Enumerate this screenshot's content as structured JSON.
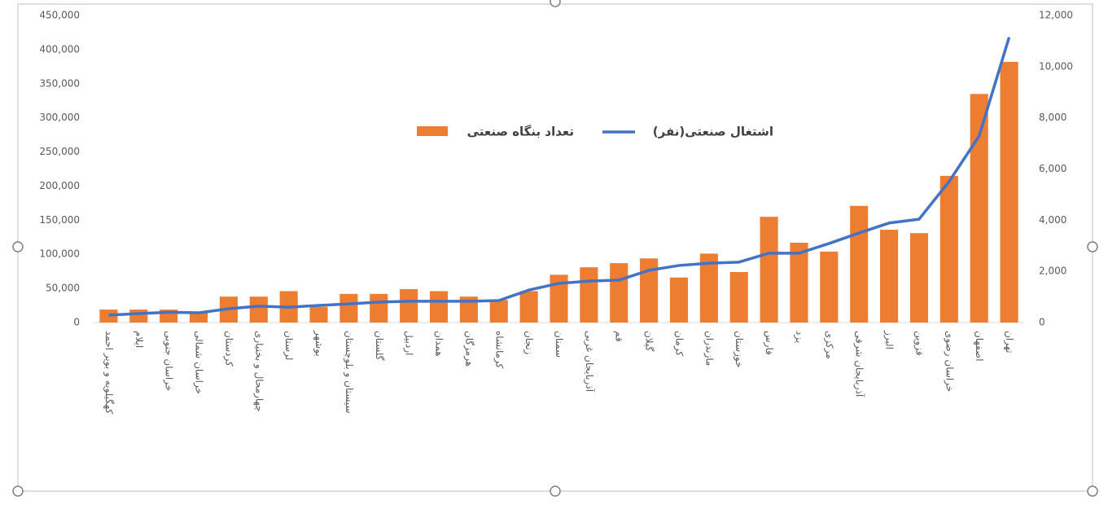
{
  "chart_data": {
    "type": "bar-line",
    "categories": [
      "کهگیلویه و بویر احمد",
      "ایلام",
      "خراسان جنوبی",
      "خراسان شمالی",
      "کردستان",
      "چهارمحال و بختیاری",
      "لرستان",
      "بوشهر",
      "سیستان و بلوچستان",
      "گلستان",
      "اردبیل",
      "همدان",
      "هرمزگان",
      "کرمانشاه",
      "زنجان",
      "سمنان",
      "آذربایجان غربی",
      "قم",
      "گیلان",
      "کرمان",
      "مازندران",
      "خوزستان",
      "فارس",
      "یزد",
      "مرکزی",
      "آذربایجان شرقی",
      "البرز",
      "قزوین",
      "خراسان رضوی",
      "اصفهان",
      "تهران"
    ],
    "series": [
      {
        "name": "تعداد بنگاه صنعتی",
        "color": "#ed7d31",
        "kind": "bar",
        "axis": "y",
        "values": [
          19000,
          19000,
          19000,
          16000,
          38000,
          38000,
          46000,
          23000,
          42000,
          42000,
          49000,
          46000,
          38000,
          33000,
          46000,
          70000,
          81000,
          87000,
          94000,
          66000,
          101000,
          74000,
          155000,
          117000,
          104000,
          171000,
          136000,
          131000,
          215000,
          335000,
          382000
        ]
      },
      {
        "name": "اشتغال صنعتی(نفر)",
        "color": "#4472c4",
        "kind": "line",
        "axis": "y2",
        "values": [
          290,
          350,
          400,
          380,
          540,
          640,
          600,
          670,
          730,
          800,
          830,
          830,
          830,
          860,
          1270,
          1530,
          1620,
          1660,
          2040,
          2230,
          2320,
          2360,
          2710,
          2710,
          3090,
          3500,
          3890,
          4040,
          5510,
          7290,
          11150
        ]
      }
    ],
    "ylim": [
      0,
      450000
    ],
    "yticks": [
      0,
      {
        "value": 50000,
        "label": "50,000"
      },
      {
        "value": 100000,
        "label": "100,000"
      },
      {
        "value": 150000,
        "label": "150,000"
      },
      {
        "value": 200000,
        "label": "200,000"
      },
      {
        "value": 250000,
        "label": "250,000"
      },
      {
        "value": 300000,
        "label": "300,000"
      },
      {
        "value": 350000,
        "label": "350,000"
      },
      {
        "value": 400000,
        "label": "400,000"
      },
      {
        "value": 450000,
        "label": "450,000"
      }
    ],
    "y2lim": [
      0,
      12000
    ],
    "y2ticks": [
      0,
      {
        "value": 2000,
        "label": "2,000"
      },
      {
        "value": 4000,
        "label": "4,000"
      },
      {
        "value": 6000,
        "label": "6,000"
      },
      {
        "value": 8000,
        "label": "8,000"
      },
      {
        "value": 10000,
        "label": "10,000"
      },
      {
        "value": 12000,
        "label": "12,000"
      }
    ],
    "grid": false,
    "legend": "top"
  }
}
